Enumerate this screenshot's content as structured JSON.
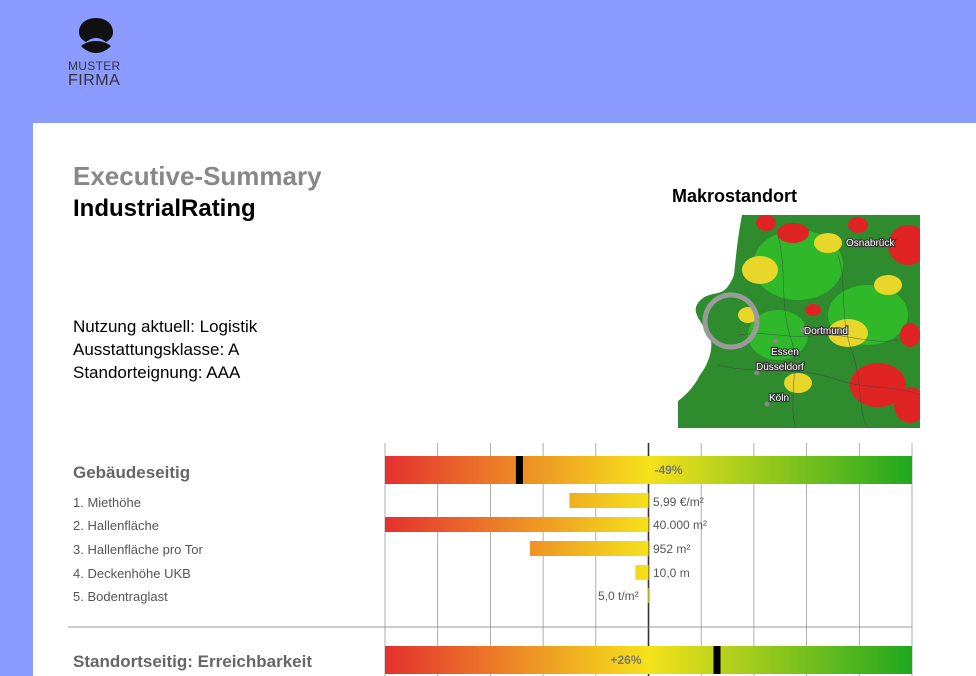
{
  "logo": {
    "line1": "MUSTER",
    "line2": "FIRMA"
  },
  "header": {
    "title": "Executive-Summary",
    "subtitle": "IndustrialRating"
  },
  "info": [
    "Nutzung aktuell: Logistik",
    "Ausstattungsklasse: A",
    "Standorteignung: AAA"
  ],
  "map": {
    "title": "Makrostandort",
    "cities": [
      "Osnabrück",
      "Dortmund",
      "Essen",
      "Düsseldorf",
      "Köln"
    ]
  },
  "colors": {
    "header_bg": "#8c9bff",
    "red": "#e53030",
    "yellow": "#f5e21a",
    "green": "#1fa81f"
  },
  "sections": [
    {
      "title": "Gebäudeseitig",
      "score": "-49%",
      "score_value": -49,
      "items": [
        {
          "label": "1. Miethöhe",
          "value": "5,99 €/m²",
          "deviation": -30
        },
        {
          "label": "2. Hallenfläche",
          "value": "40.000 m²",
          "deviation": -100
        },
        {
          "label": "3. Hallenfläche pro Tor",
          "value": "952 m²",
          "deviation": -45
        },
        {
          "label": "4. Deckenhöhe UKB",
          "value": "10,0 m",
          "deviation": -5
        },
        {
          "label": "5. Bodentraglast",
          "value": "5,0 t/m²",
          "deviation": -0.5
        }
      ]
    },
    {
      "title": "Standortseitig: Erreichbarkeit",
      "score": "+26%",
      "score_value": 26,
      "items": []
    }
  ]
}
